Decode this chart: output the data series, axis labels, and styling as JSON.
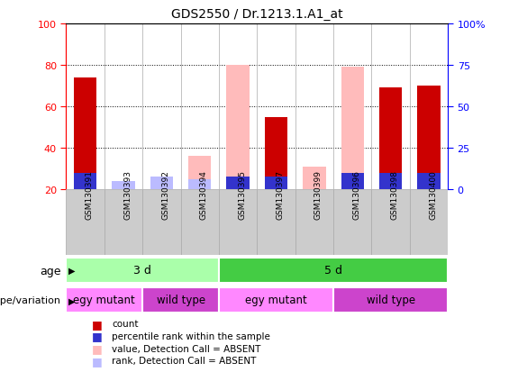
{
  "title": "GDS2550 / Dr.1213.1.A1_at",
  "samples": [
    "GSM130391",
    "GSM130393",
    "GSM130392",
    "GSM130394",
    "GSM130395",
    "GSM130397",
    "GSM130399",
    "GSM130396",
    "GSM130398",
    "GSM130400"
  ],
  "count_values": [
    74,
    0,
    0,
    0,
    0,
    55,
    0,
    0,
    69,
    70
  ],
  "rank_values": [
    28,
    0,
    0,
    0,
    26,
    26,
    0,
    28,
    28,
    28
  ],
  "value_absent": [
    0,
    0,
    26,
    36,
    80,
    0,
    31,
    79,
    0,
    0
  ],
  "rank_absent": [
    0,
    24,
    26,
    25,
    26,
    0,
    0,
    0,
    0,
    0
  ],
  "ylim": [
    20,
    100
  ],
  "yticks_left": [
    20,
    40,
    60,
    80,
    100
  ],
  "ytick_right_positions": [
    20,
    40,
    60,
    80,
    100
  ],
  "ytick_right_labels": [
    "0",
    "25",
    "50",
    "75",
    "100%"
  ],
  "color_count": "#cc0000",
  "color_rank": "#3333cc",
  "color_value_absent": "#ffbbbb",
  "color_rank_absent": "#bbbbff",
  "bar_width": 0.6,
  "age_groups": [
    {
      "label": "3 d",
      "start": 0,
      "end": 4,
      "color": "#aaffaa"
    },
    {
      "label": "5 d",
      "start": 4,
      "end": 10,
      "color": "#44cc44"
    }
  ],
  "genotype_groups": [
    {
      "label": "egy mutant",
      "start": 0,
      "end": 2,
      "color": "#ff88ff"
    },
    {
      "label": "wild type",
      "start": 2,
      "end": 4,
      "color": "#cc44cc"
    },
    {
      "label": "egy mutant",
      "start": 4,
      "end": 7,
      "color": "#ff88ff"
    },
    {
      "label": "wild type",
      "start": 7,
      "end": 10,
      "color": "#cc44cc"
    }
  ],
  "legend_items": [
    {
      "label": "count",
      "color": "#cc0000"
    },
    {
      "label": "percentile rank within the sample",
      "color": "#3333cc"
    },
    {
      "label": "value, Detection Call = ABSENT",
      "color": "#ffbbbb"
    },
    {
      "label": "rank, Detection Call = ABSENT",
      "color": "#bbbbff"
    }
  ],
  "xlabel_fontsize": 7,
  "ylabel_fontsize": 8,
  "title_fontsize": 10,
  "grid_linestyle": ":",
  "grid_color": "black",
  "sample_box_color": "#cccccc",
  "sample_box_linecolor": "#aaaaaa"
}
